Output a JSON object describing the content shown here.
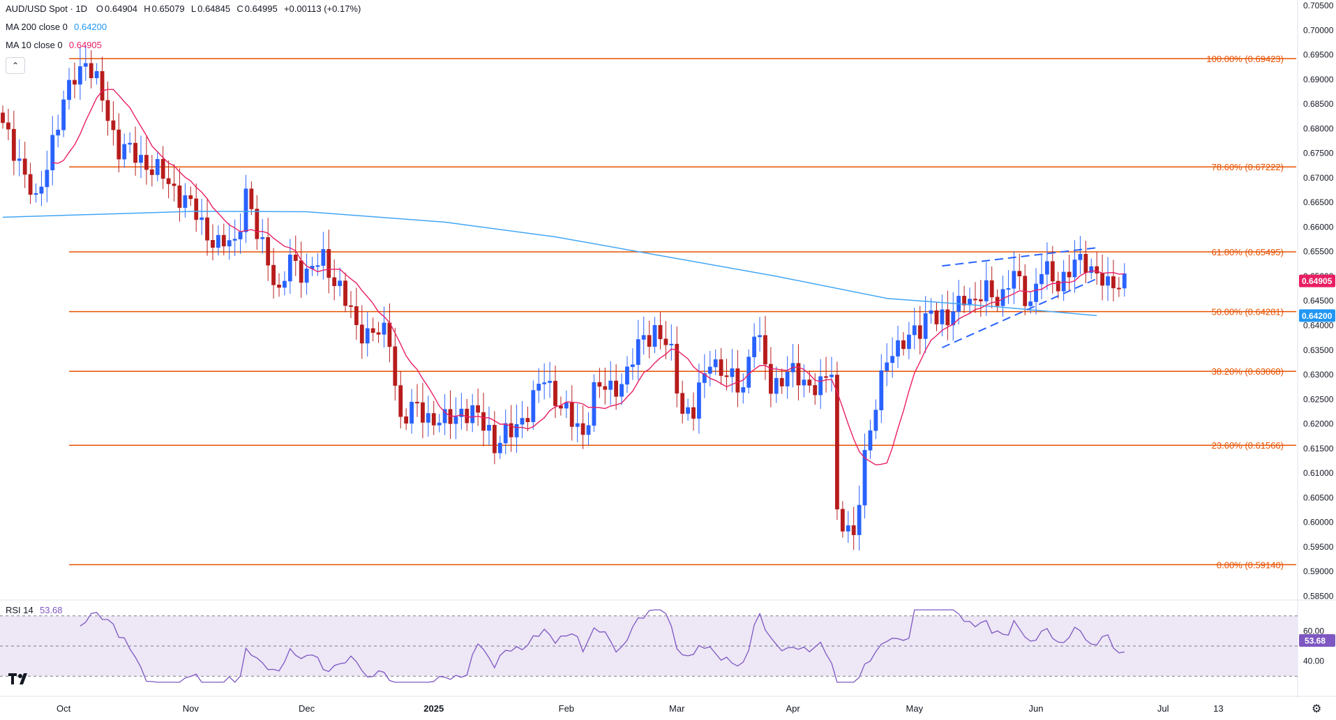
{
  "header": {
    "symbol": "AUD/USD Spot · 1D",
    "open_label": "O",
    "open": "0.64904",
    "high_label": "H",
    "high": "0.65079",
    "low_label": "L",
    "low": "0.64845",
    "close_label": "C",
    "close": "0.64995",
    "change": "+0.00113 (+0.17%)"
  },
  "indicators": {
    "ma200": {
      "label": "MA 200 close 0",
      "value": "0.64200",
      "color": "#2196f3"
    },
    "ma10": {
      "label": "MA 10 close 0",
      "value": "0.64905",
      "color": "#e91e63"
    },
    "rsi": {
      "label": "RSI 14",
      "value": "53.68",
      "color": "#7e57c2"
    }
  },
  "colors": {
    "up": "#2962ff",
    "down": "#b71c1c",
    "fib": "#e65100",
    "channel": "#2962ff",
    "ma200": "#42a5f5",
    "ma10": "#e91e63",
    "rsi_fill": "#ede7f6"
  },
  "icons": {
    "collapse": "chevron-up-icon",
    "logo": "tradingview-logo-icon",
    "settings": "gear-icon"
  },
  "chart_data": {
    "type": "candlestick",
    "ylim": [
      0.5845,
      0.705
    ],
    "y_ticks": [
      "0.70500",
      "0.70000",
      "0.69500",
      "0.69000",
      "0.68500",
      "0.68000",
      "0.67500",
      "0.67000",
      "0.66500",
      "0.66000",
      "0.65500",
      "0.65000",
      "0.64500",
      "0.64000",
      "0.63500",
      "0.63000",
      "0.62500",
      "0.62000",
      "0.61500",
      "0.61000",
      "0.60500",
      "0.60000",
      "0.59500",
      "0.59000",
      "0.58500"
    ],
    "x_labels": [
      {
        "label": "Oct",
        "index": 11,
        "bold": false
      },
      {
        "label": "Nov",
        "index": 34,
        "bold": false
      },
      {
        "label": "Dec",
        "index": 55,
        "bold": false
      },
      {
        "label": "2025",
        "index": 78,
        "bold": true
      },
      {
        "label": "Feb",
        "index": 102,
        "bold": false
      },
      {
        "label": "Mar",
        "index": 122,
        "bold": false
      },
      {
        "label": "Apr",
        "index": 143,
        "bold": false
      },
      {
        "label": "May",
        "index": 165,
        "bold": false
      },
      {
        "label": "Jun",
        "index": 187,
        "bold": false
      },
      {
        "label": "Jul",
        "index": 210,
        "bold": false
      },
      {
        "label": "13",
        "index": 220,
        "bold": false
      }
    ],
    "x_slots": 230,
    "fib_levels": [
      {
        "label": "100.00% (0.69423)",
        "value": 0.69423
      },
      {
        "label": "78.60% (0.67222)",
        "value": 0.67222
      },
      {
        "label": "61.80% (0.65495)",
        "value": 0.65495
      },
      {
        "label": "50.00% (0.64281)",
        "value": 0.64281
      },
      {
        "label": "38.20% (0.63068)",
        "value": 0.63068
      },
      {
        "label": "23.60% (0.61566)",
        "value": 0.61566
      },
      {
        "label": "0.00% (0.59140)",
        "value": 0.5914
      }
    ],
    "fib_start_index": 12,
    "channel": {
      "upper": [
        [
          170,
          0.6521
        ],
        [
          198,
          0.6558
        ]
      ],
      "lower": [
        [
          170,
          0.6355
        ],
        [
          198,
          0.6495
        ]
      ]
    },
    "ma200_line": [
      [
        0,
        0.662
      ],
      [
        35,
        0.6632
      ],
      [
        55,
        0.6631
      ],
      [
        80,
        0.661
      ],
      [
        100,
        0.658
      ],
      [
        120,
        0.654
      ],
      [
        140,
        0.65
      ],
      [
        160,
        0.6455
      ],
      [
        180,
        0.6438
      ],
      [
        198,
        0.642
      ]
    ],
    "price_badges": [
      {
        "label": "0.64905",
        "value": 0.64905,
        "color": "#e91e63"
      },
      {
        "label": "0.64200",
        "value": 0.642,
        "color": "#2196f3"
      }
    ],
    "candle_series": "computed in script from close path; includes open/high/low/close per day",
    "close_path": [
      [
        0,
        0.68
      ],
      [
        3,
        0.674
      ],
      [
        6,
        0.664
      ],
      [
        9,
        0.678
      ],
      [
        13,
        0.691
      ],
      [
        15,
        0.694
      ],
      [
        18,
        0.686
      ],
      [
        21,
        0.676
      ],
      [
        25,
        0.674
      ],
      [
        28,
        0.671
      ],
      [
        31,
        0.668
      ],
      [
        34,
        0.664
      ],
      [
        37,
        0.659
      ],
      [
        39,
        0.656
      ],
      [
        42,
        0.657
      ],
      [
        44,
        0.667
      ],
      [
        46,
        0.658
      ],
      [
        48,
        0.654
      ],
      [
        50,
        0.646
      ],
      [
        52,
        0.653
      ],
      [
        55,
        0.651
      ],
      [
        58,
        0.653
      ],
      [
        61,
        0.648
      ],
      [
        64,
        0.639
      ],
      [
        67,
        0.639
      ],
      [
        70,
        0.637
      ],
      [
        72,
        0.621
      ],
      [
        75,
        0.623
      ],
      [
        78,
        0.621
      ],
      [
        80,
        0.62
      ],
      [
        83,
        0.623
      ],
      [
        86,
        0.621
      ],
      [
        88,
        0.619
      ],
      [
        89,
        0.616
      ],
      [
        92,
        0.618
      ],
      [
        95,
        0.623
      ],
      [
        98,
        0.629
      ],
      [
        100,
        0.626
      ],
      [
        103,
        0.62
      ],
      [
        105,
        0.618
      ],
      [
        107,
        0.627
      ],
      [
        110,
        0.627
      ],
      [
        113,
        0.63
      ],
      [
        116,
        0.638
      ],
      [
        118,
        0.639
      ],
      [
        121,
        0.634
      ],
      [
        123,
        0.623
      ],
      [
        125,
        0.622
      ],
      [
        128,
        0.634
      ],
      [
        131,
        0.629
      ],
      [
        134,
        0.628
      ],
      [
        136,
        0.639
      ],
      [
        139,
        0.628
      ],
      [
        142,
        0.63
      ],
      [
        145,
        0.629
      ],
      [
        148,
        0.627
      ],
      [
        150,
        0.631
      ],
      [
        151,
        0.602
      ],
      [
        153,
        0.599
      ],
      [
        154,
        0.595
      ],
      [
        156,
        0.614
      ],
      [
        158,
        0.625
      ],
      [
        160,
        0.632
      ],
      [
        163,
        0.638
      ],
      [
        166,
        0.638
      ],
      [
        168,
        0.644
      ],
      [
        171,
        0.64
      ],
      [
        174,
        0.647
      ],
      [
        176,
        0.644
      ],
      [
        178,
        0.647
      ],
      [
        181,
        0.646
      ],
      [
        183,
        0.65
      ],
      [
        186,
        0.645
      ],
      [
        188,
        0.651
      ],
      [
        191,
        0.649
      ],
      [
        194,
        0.652
      ],
      [
        196,
        0.653
      ],
      [
        198,
        0.651
      ],
      [
        200,
        0.647
      ],
      [
        202,
        0.649
      ],
      [
        203,
        0.65
      ]
    ],
    "rsi": {
      "ylim": [
        25,
        75
      ],
      "bands": [
        30,
        50,
        70
      ],
      "y_ticks": [
        "60.00",
        "40.00"
      ],
      "current": "53.68"
    }
  }
}
